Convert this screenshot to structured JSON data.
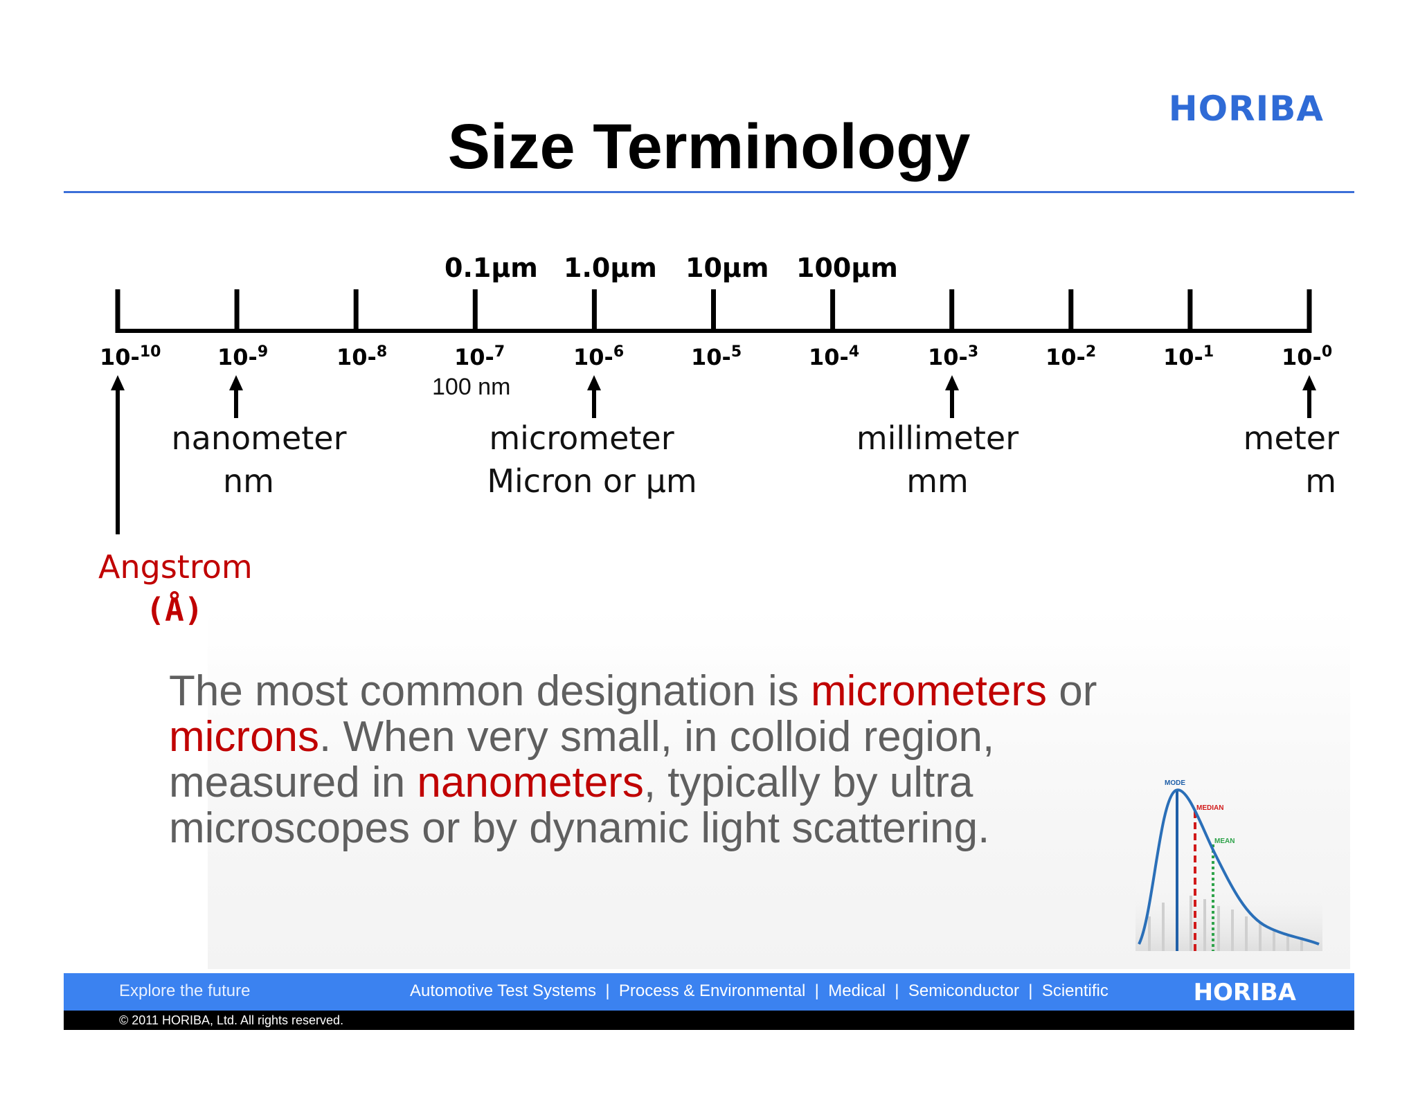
{
  "brand": "HORIBA",
  "title": "Size Terminology",
  "scale": {
    "micron_labels": [
      "0.1µm",
      "1.0µm",
      "10µm",
      "100µm"
    ],
    "ticks": [
      {
        "base": "10-",
        "exp": "10"
      },
      {
        "base": "10-",
        "exp": "9"
      },
      {
        "base": "10-",
        "exp": "8"
      },
      {
        "base": "10-",
        "exp": "7"
      },
      {
        "base": "10-",
        "exp": "6"
      },
      {
        "base": "10-",
        "exp": "5"
      },
      {
        "base": "10-",
        "exp": "4"
      },
      {
        "base": "10-",
        "exp": "3"
      },
      {
        "base": "10-",
        "exp": "2"
      },
      {
        "base": "10-",
        "exp": "1"
      },
      {
        "base": "10-",
        "exp": "0"
      }
    ],
    "note_100nm": "100 nm"
  },
  "units": {
    "nanometer": {
      "name": "nanometer",
      "abbr": "nm"
    },
    "micrometer": {
      "name": "micrometer",
      "abbr": "Micron or µm"
    },
    "millimeter": {
      "name": "millimeter",
      "abbr": "mm"
    },
    "meter": {
      "name": "meter",
      "abbr": "m"
    },
    "angstrom": {
      "name": "Angstrom",
      "abbr": "(Å)"
    }
  },
  "body": {
    "p1": "The most common designation is ",
    "h1": "micrometers",
    "p2": " or ",
    "h2": "microns",
    "p3": ". When very small, in colloid region, measured in ",
    "h3": "nanometers",
    "p4": ", typically by ultra microscopes or by dynamic light scattering."
  },
  "distribution": {
    "labels": [
      "MODE",
      "MEDIAN",
      "MEAN"
    ],
    "colors": {
      "mode": "#1f5fa8",
      "median": "#d11a1a",
      "mean": "#2ea34a",
      "curve": "#2a6fb8"
    }
  },
  "footer": {
    "tagline": "Explore the future",
    "divisions": "Automotive Test Systems  |  Process & Environmental  |  Medical  |  Semiconductor  |  Scientific",
    "brand": "HORIBA",
    "copyright": "© 2011 HORIBA, Ltd. All rights reserved."
  }
}
